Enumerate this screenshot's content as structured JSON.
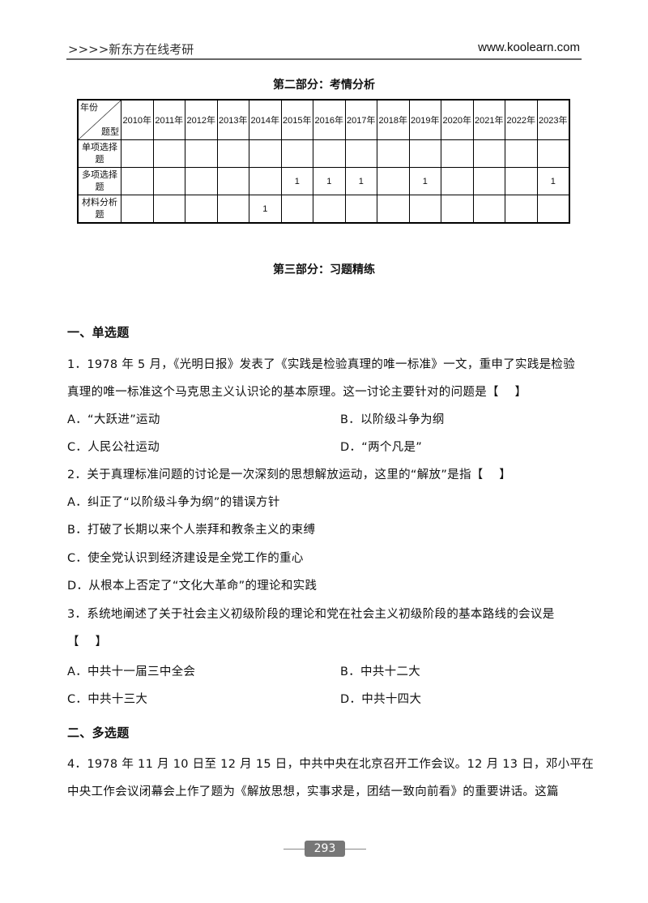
{
  "header": {
    "left": ">>>>新东方在线考研",
    "right": "www.koolearn.com"
  },
  "section2": "第二部分：考情分析",
  "table": {
    "corner_top": "年份",
    "corner_bottom": "题型",
    "years": [
      "2010年",
      "2011年",
      "2012年",
      "2013年",
      "2014年",
      "2015年",
      "2016年",
      "2017年",
      "2018年",
      "2019年",
      "2020年",
      "2021年",
      "2022年",
      "2023年"
    ],
    "rows": [
      {
        "label": "单项选择题",
        "values": [
          "",
          "",
          "",
          "",
          "",
          "",
          "",
          "",
          "",
          "",
          "",
          "",
          "",
          ""
        ]
      },
      {
        "label": "多项选择题",
        "values": [
          "",
          "",
          "",
          "",
          "",
          "1",
          "1",
          "1",
          "",
          "1",
          "",
          "",
          "",
          "1"
        ]
      },
      {
        "label": "材料分析题",
        "values": [
          "",
          "",
          "",
          "",
          "1",
          "",
          "",
          "",
          "",
          "",
          "",
          "",
          "",
          ""
        ]
      }
    ]
  },
  "section3": "第三部分：习题精练",
  "part1": "一、单选题",
  "q1": {
    "line1": "1．1978 年 5 月，《光明日报》发表了《实践是检验真理的唯一标准》一文，重申了实践是检验",
    "line2": "真理的唯一标准这个马克思主义认识论的基本原理。这一讨论主要针对的问题是【　 】",
    "a": "A．“大跃进”运动",
    "b": "B．以阶级斗争为纲",
    "c": "C．人民公社运动",
    "d": "D．“两个凡是”"
  },
  "q2": {
    "line1": "2．关于真理标准问题的讨论是一次深刻的思想解放运动，这里的“解放”是指【　 】",
    "a": "A．纠正了“以阶级斗争为纲”的错误方针",
    "b": "B．打破了长期以来个人崇拜和教条主义的束缚",
    "c": "C．使全党认识到经济建设是全党工作的重心",
    "d": "D．从根本上否定了“文化大革命”的理论和实践"
  },
  "q3": {
    "line1": "3．系统地阐述了关于社会主义初级阶段的理论和党在社会主义初级阶段的基本路线的会议是",
    "line2": "【　 】",
    "a": "A．中共十一届三中全会",
    "b": "B．中共十二大",
    "c": "C．中共十三大",
    "d": "D．中共十四大"
  },
  "part2": "二、多选题",
  "q4": {
    "line1": "4．1978 年 11 月 10 日至 12 月 15 日，中共中央在北京召开工作会议。12 月 13 日，邓小平在",
    "line2": "中央工作会议闭幕会上作了题为《解放思想，实事求是，团结一致向前看》的重要讲话。这篇"
  },
  "page_number": "293"
}
